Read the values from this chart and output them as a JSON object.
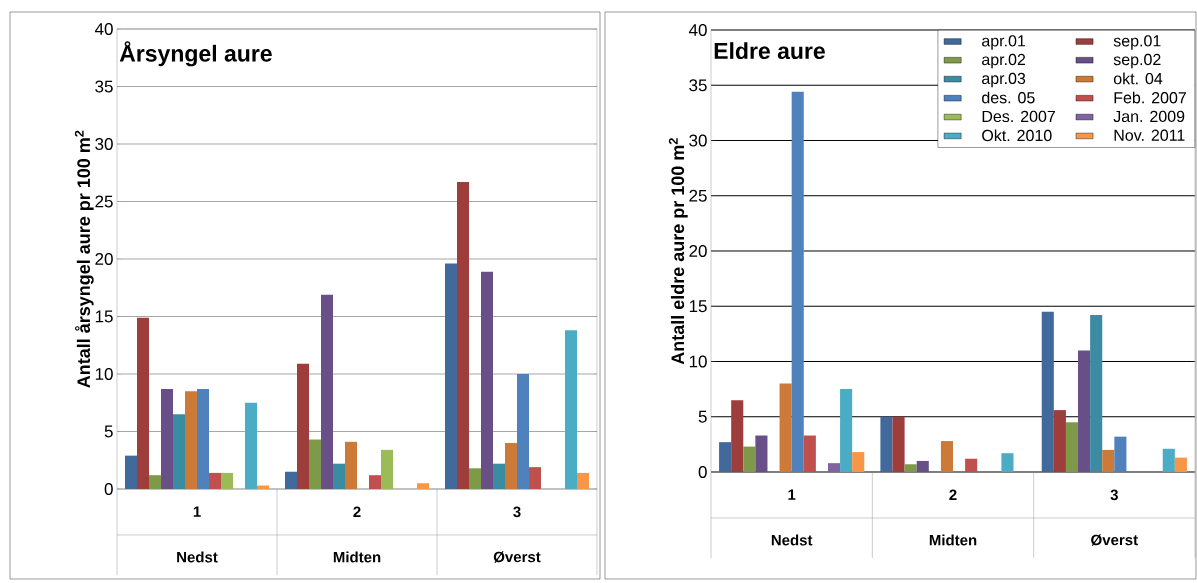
{
  "chart_data": [
    {
      "type": "bar",
      "title": "Årsyngel aure",
      "ylabel": "Antall årsyngel aure pr 100 m$^{2}$",
      "categories": [
        "1",
        "2",
        "3"
      ],
      "annotations": [
        "Nedst",
        "Midten",
        "Øverst"
      ],
      "ylim": [
        0,
        40
      ],
      "yticks": [
        0,
        5,
        10,
        15,
        20,
        25,
        30,
        35,
        40
      ],
      "grid": "y",
      "series": [
        {
          "color": "#41699c",
          "values": [
            2.9,
            1.5,
            19.6
          ]
        },
        {
          "color": "#9e3e3c",
          "values": [
            14.9,
            10.9,
            26.7
          ]
        },
        {
          "color": "#7f994a",
          "values": [
            1.2,
            4.3,
            1.8
          ]
        },
        {
          "color": "#684f87",
          "values": [
            8.7,
            16.9,
            18.9
          ]
        },
        {
          "color": "#3b8ba3",
          "values": [
            6.5,
            2.2,
            2.2
          ]
        },
        {
          "color": "#cc7a37",
          "values": [
            8.5,
            4.1,
            4.0
          ]
        },
        {
          "color": "#4f81bd",
          "values": [
            8.7,
            null,
            10.0
          ]
        },
        {
          "color": "#c0504d",
          "values": [
            1.4,
            1.2,
            1.9
          ]
        },
        {
          "color": "#9bbb59",
          "values": [
            1.4,
            3.4,
            null
          ]
        },
        {
          "color": "#8064a2",
          "values": [
            null,
            null,
            null
          ]
        },
        {
          "color": "#4bacc6",
          "values": [
            7.5,
            null,
            13.8
          ]
        },
        {
          "color": "#f79646",
          "values": [
            0.3,
            0.5,
            1.4
          ]
        }
      ]
    },
    {
      "type": "bar",
      "title": "Eldre aure",
      "ylabel": "Antall eldre aure pr 100 m$^{2}$",
      "categories": [
        "1",
        "2",
        "3"
      ],
      "annotations": [
        "Nedst",
        "Midten",
        "Øverst"
      ],
      "ylim": [
        0,
        40
      ],
      "yticks": [
        0,
        5,
        10,
        15,
        20,
        25,
        30,
        35,
        40
      ],
      "grid": "y",
      "legend": "top right",
      "series": [
        {
          "name": "apr.01",
          "color": "#41699c",
          "values": [
            2.7,
            5.0,
            14.5
          ]
        },
        {
          "name": "sep.01",
          "color": "#9e3e3c",
          "values": [
            6.5,
            5.0,
            5.6
          ]
        },
        {
          "name": "apr.02",
          "color": "#7f994a",
          "values": [
            2.3,
            0.7,
            4.5
          ]
        },
        {
          "name": "sep.02",
          "color": "#684f87",
          "values": [
            3.3,
            1.0,
            11.0
          ]
        },
        {
          "name": "apr.03",
          "color": "#3b8ba3",
          "values": [
            null,
            null,
            14.2
          ]
        },
        {
          "name": "okt. 04",
          "color": "#cc7a37",
          "values": [
            8.0,
            2.8,
            2.0
          ]
        },
        {
          "name": "des. 05",
          "color": "#4f81bd",
          "values": [
            34.4,
            null,
            3.2
          ]
        },
        {
          "name": "Feb. 2007",
          "color": "#c0504d",
          "values": [
            3.3,
            1.2,
            null
          ]
        },
        {
          "name": "Des. 2007",
          "color": "#9bbb59",
          "values": [
            null,
            null,
            null
          ]
        },
        {
          "name": "Jan. 2009",
          "color": "#8064a2",
          "values": [
            0.8,
            null,
            null
          ]
        },
        {
          "name": "Okt. 2010",
          "color": "#4bacc6",
          "values": [
            7.5,
            1.7,
            2.1
          ]
        },
        {
          "name": "Nov. 2011",
          "color": "#f79646",
          "values": [
            1.8,
            null,
            1.3
          ]
        }
      ]
    }
  ]
}
